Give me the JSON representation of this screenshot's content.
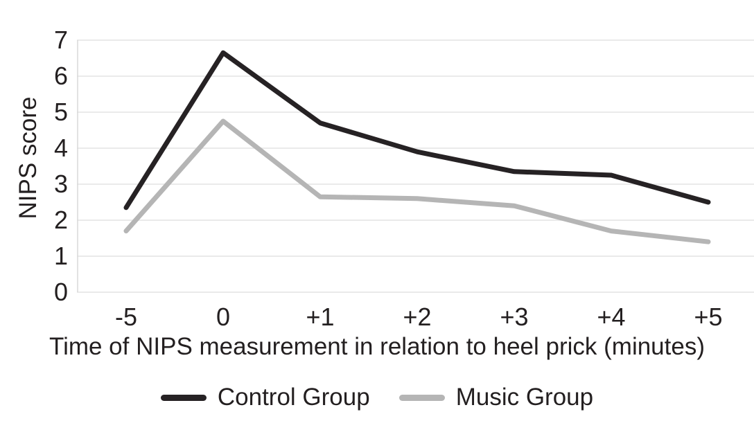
{
  "chart_data": {
    "type": "line",
    "title": "",
    "categories": [
      "-5",
      "0",
      "+1",
      "+2",
      "+3",
      "+4",
      "+5"
    ],
    "xlabel": "Time of NIPS measurement in relation to heel prick (minutes)",
    "ylabel": "NIPS score",
    "ylim": [
      0,
      7
    ],
    "y_ticks": [
      0,
      1,
      2,
      3,
      4,
      5,
      6,
      7
    ],
    "grid": "horizontal",
    "legend_position": "bottom-center",
    "series": [
      {
        "name": "Control Group",
        "color": "#262224",
        "values": [
          2.35,
          6.65,
          4.7,
          3.9,
          3.35,
          3.25,
          2.5
        ]
      },
      {
        "name": "Music Group",
        "color": "#b5b5b5",
        "values": [
          1.7,
          4.75,
          2.65,
          2.6,
          2.4,
          1.7,
          1.4
        ]
      }
    ]
  },
  "colors": {
    "text": "#231f20",
    "gridline": "#eaeaea",
    "axis_border": "#d9d9d9",
    "background": "#ffffff"
  }
}
